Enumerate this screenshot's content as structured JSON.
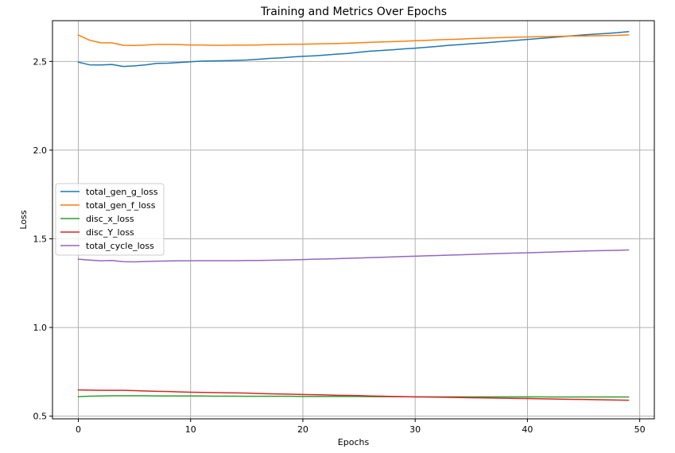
{
  "chart_data": {
    "type": "line",
    "title": "Training and  Metrics Over Epochs",
    "xlabel": "Epochs",
    "ylabel": "Loss",
    "xlim": [
      -2.3,
      51.3
    ],
    "ylim": [
      0.485,
      2.73
    ],
    "xticks": [
      0,
      10,
      20,
      30,
      40,
      50
    ],
    "yticks": [
      0.5,
      1.0,
      1.5,
      2.0,
      2.5
    ],
    "xtick_labels": [
      "0",
      "10",
      "20",
      "30",
      "40",
      "50"
    ],
    "ytick_labels": [
      "0.5",
      "1.0",
      "1.5",
      "2.0",
      "2.5"
    ],
    "grid": true,
    "legend_position": "center-left",
    "x": [
      0,
      1,
      2,
      3,
      4,
      5,
      6,
      7,
      8,
      9,
      10,
      11,
      12,
      13,
      14,
      15,
      16,
      17,
      18,
      19,
      20,
      21,
      22,
      23,
      24,
      25,
      26,
      27,
      28,
      29,
      30,
      31,
      32,
      33,
      34,
      35,
      36,
      37,
      38,
      39,
      40,
      41,
      42,
      43,
      44,
      45,
      46,
      47,
      48,
      49
    ],
    "series": [
      {
        "name": "total_gen_g_loss",
        "color": "#1f77b4",
        "values": [
          2.496,
          2.481,
          2.48,
          2.483,
          2.472,
          2.475,
          2.481,
          2.489,
          2.49,
          2.494,
          2.498,
          2.502,
          2.503,
          2.504,
          2.506,
          2.508,
          2.512,
          2.517,
          2.52,
          2.525,
          2.529,
          2.532,
          2.536,
          2.541,
          2.545,
          2.552,
          2.558,
          2.562,
          2.566,
          2.571,
          2.575,
          2.58,
          2.585,
          2.591,
          2.595,
          2.6,
          2.604,
          2.609,
          2.614,
          2.619,
          2.624,
          2.629,
          2.634,
          2.639,
          2.645,
          2.65,
          2.654,
          2.658,
          2.662,
          2.668
        ]
      },
      {
        "name": "total_gen_f_loss",
        "color": "#ff7f0e",
        "values": [
          2.649,
          2.62,
          2.605,
          2.605,
          2.591,
          2.59,
          2.593,
          2.596,
          2.596,
          2.595,
          2.593,
          2.593,
          2.591,
          2.591,
          2.592,
          2.592,
          2.593,
          2.595,
          2.596,
          2.597,
          2.597,
          2.599,
          2.6,
          2.601,
          2.603,
          2.605,
          2.608,
          2.61,
          2.612,
          2.614,
          2.617,
          2.619,
          2.622,
          2.624,
          2.626,
          2.629,
          2.631,
          2.633,
          2.635,
          2.637,
          2.638,
          2.64,
          2.641,
          2.642,
          2.643,
          2.644,
          2.645,
          2.646,
          2.647,
          2.65
        ]
      },
      {
        "name": "disc_x_loss",
        "color": "#2ca02c",
        "values": [
          0.61,
          0.613,
          0.614,
          0.615,
          0.615,
          0.615,
          0.615,
          0.614,
          0.614,
          0.614,
          0.614,
          0.614,
          0.613,
          0.613,
          0.613,
          0.612,
          0.612,
          0.612,
          0.612,
          0.612,
          0.611,
          0.611,
          0.611,
          0.611,
          0.611,
          0.611,
          0.61,
          0.61,
          0.61,
          0.61,
          0.609,
          0.609,
          0.609,
          0.609,
          0.609,
          0.609,
          0.609,
          0.609,
          0.609,
          0.609,
          0.609,
          0.609,
          0.608,
          0.608,
          0.608,
          0.608,
          0.608,
          0.608,
          0.608,
          0.608
        ]
      },
      {
        "name": "disc_Y_loss",
        "color": "#d62728",
        "values": [
          0.648,
          0.647,
          0.646,
          0.646,
          0.646,
          0.644,
          0.642,
          0.64,
          0.639,
          0.637,
          0.635,
          0.634,
          0.633,
          0.632,
          0.631,
          0.63,
          0.628,
          0.626,
          0.625,
          0.624,
          0.622,
          0.621,
          0.62,
          0.618,
          0.617,
          0.616,
          0.614,
          0.613,
          0.611,
          0.61,
          0.609,
          0.608,
          0.607,
          0.606,
          0.605,
          0.604,
          0.603,
          0.602,
          0.601,
          0.6,
          0.599,
          0.598,
          0.597,
          0.596,
          0.595,
          0.594,
          0.593,
          0.592,
          0.591,
          0.59
        ]
      },
      {
        "name": "total_cycle_loss",
        "color": "#9467bd",
        "values": [
          1.385,
          1.38,
          1.376,
          1.378,
          1.371,
          1.37,
          1.372,
          1.374,
          1.375,
          1.376,
          1.376,
          1.377,
          1.377,
          1.377,
          1.377,
          1.378,
          1.378,
          1.379,
          1.38,
          1.381,
          1.383,
          1.385,
          1.386,
          1.388,
          1.39,
          1.392,
          1.394,
          1.396,
          1.398,
          1.4,
          1.402,
          1.404,
          1.406,
          1.408,
          1.41,
          1.412,
          1.414,
          1.416,
          1.418,
          1.42,
          1.421,
          1.423,
          1.425,
          1.427,
          1.429,
          1.431,
          1.433,
          1.434,
          1.435,
          1.437
        ]
      }
    ]
  }
}
